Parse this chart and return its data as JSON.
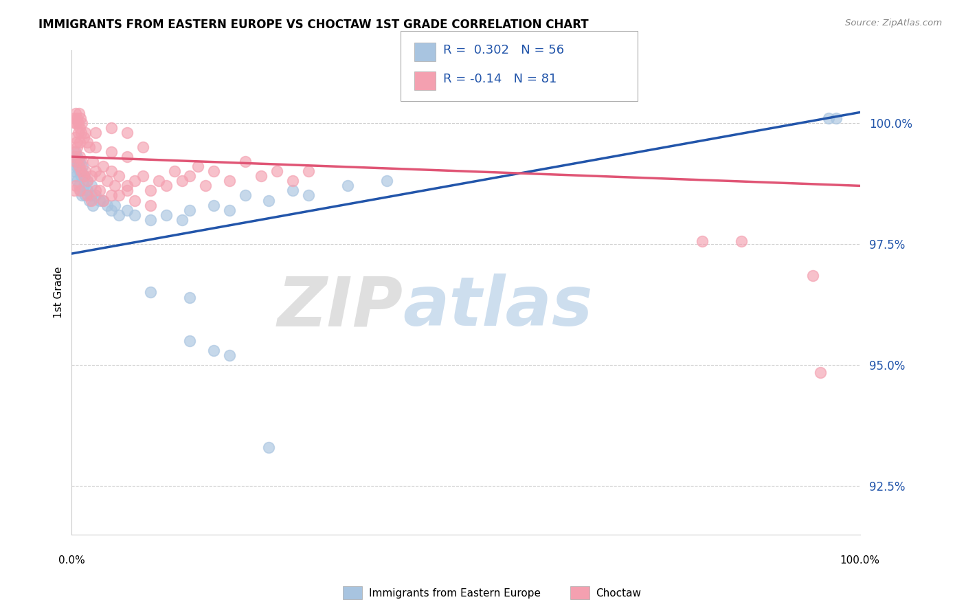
{
  "title": "IMMIGRANTS FROM EASTERN EUROPE VS CHOCTAW 1ST GRADE CORRELATION CHART",
  "source": "Source: ZipAtlas.com",
  "ylabel": "1st Grade",
  "xlim": [
    0.0,
    100.0
  ],
  "ylim": [
    91.5,
    101.5
  ],
  "yticks": [
    92.5,
    95.0,
    97.5,
    100.0
  ],
  "ytick_labels": [
    "92.5%",
    "95.0%",
    "97.5%",
    "100.0%"
  ],
  "blue_R": 0.302,
  "blue_N": 56,
  "pink_R": -0.14,
  "pink_N": 81,
  "blue_color": "#a8c4e0",
  "pink_color": "#f4a0b0",
  "blue_line_color": "#2255aa",
  "pink_line_color": "#e05575",
  "axis_color": "#2255aa",
  "watermark_zip": "ZIP",
  "watermark_atlas": "atlas",
  "blue_line_ends": [
    0,
    96,
    97.3,
    100.1
  ],
  "pink_line_ends": [
    0,
    100,
    99.3,
    98.7
  ],
  "blue_points": [
    [
      0.3,
      99.0
    ],
    [
      0.5,
      98.9
    ],
    [
      0.6,
      99.1
    ],
    [
      0.7,
      98.8
    ],
    [
      0.8,
      99.2
    ],
    [
      0.9,
      98.7
    ],
    [
      1.0,
      99.0
    ],
    [
      1.1,
      98.6
    ],
    [
      1.2,
      98.9
    ],
    [
      1.3,
      98.5
    ],
    [
      1.5,
      98.7
    ],
    [
      1.7,
      98.5
    ],
    [
      2.0,
      98.6
    ],
    [
      2.2,
      98.4
    ],
    [
      2.5,
      98.5
    ],
    [
      2.7,
      98.3
    ],
    [
      3.0,
      98.5
    ],
    [
      3.5,
      98.4
    ],
    [
      4.0,
      98.4
    ],
    [
      4.5,
      98.3
    ],
    [
      5.0,
      98.2
    ],
    [
      5.5,
      98.3
    ],
    [
      6.0,
      98.1
    ],
    [
      7.0,
      98.2
    ],
    [
      8.0,
      98.1
    ],
    [
      10.0,
      98.0
    ],
    [
      12.0,
      98.1
    ],
    [
      14.0,
      98.0
    ],
    [
      15.0,
      98.2
    ],
    [
      18.0,
      98.3
    ],
    [
      20.0,
      98.2
    ],
    [
      22.0,
      98.5
    ],
    [
      25.0,
      98.4
    ],
    [
      28.0,
      98.6
    ],
    [
      30.0,
      98.5
    ],
    [
      35.0,
      98.7
    ],
    [
      40.0,
      98.8
    ],
    [
      0.4,
      99.3
    ],
    [
      0.5,
      99.4
    ],
    [
      0.6,
      99.2
    ],
    [
      0.7,
      99.3
    ],
    [
      0.8,
      99.1
    ],
    [
      1.0,
      99.2
    ],
    [
      1.2,
      99.0
    ],
    [
      1.4,
      99.1
    ],
    [
      1.6,
      98.9
    ],
    [
      2.0,
      98.8
    ],
    [
      2.5,
      98.7
    ],
    [
      10.0,
      96.5
    ],
    [
      15.0,
      96.4
    ],
    [
      15.0,
      95.5
    ],
    [
      18.0,
      95.3
    ],
    [
      20.0,
      95.2
    ],
    [
      25.0,
      93.3
    ],
    [
      96.0,
      100.1
    ],
    [
      97.0,
      100.1
    ]
  ],
  "pink_points": [
    [
      0.3,
      100.1
    ],
    [
      0.4,
      100.0
    ],
    [
      0.5,
      100.2
    ],
    [
      0.6,
      100.0
    ],
    [
      0.7,
      100.1
    ],
    [
      0.8,
      100.0
    ],
    [
      0.9,
      100.2
    ],
    [
      1.0,
      99.9
    ],
    [
      1.1,
      100.1
    ],
    [
      1.2,
      99.8
    ],
    [
      1.3,
      100.0
    ],
    [
      1.5,
      99.7
    ],
    [
      1.7,
      99.8
    ],
    [
      2.0,
      99.6
    ],
    [
      2.2,
      99.5
    ],
    [
      0.2,
      99.3
    ],
    [
      0.3,
      99.4
    ],
    [
      0.5,
      99.2
    ],
    [
      0.7,
      99.5
    ],
    [
      0.9,
      99.1
    ],
    [
      1.0,
      99.3
    ],
    [
      1.2,
      99.0
    ],
    [
      1.3,
      99.2
    ],
    [
      1.5,
      98.9
    ],
    [
      1.7,
      99.0
    ],
    [
      2.0,
      98.8
    ],
    [
      2.5,
      98.9
    ],
    [
      2.7,
      99.2
    ],
    [
      3.0,
      99.0
    ],
    [
      3.5,
      98.9
    ],
    [
      4.0,
      99.1
    ],
    [
      4.5,
      98.8
    ],
    [
      5.0,
      99.0
    ],
    [
      5.5,
      98.7
    ],
    [
      6.0,
      98.9
    ],
    [
      7.0,
      98.7
    ],
    [
      8.0,
      98.8
    ],
    [
      9.0,
      98.9
    ],
    [
      10.0,
      98.6
    ],
    [
      11.0,
      98.8
    ],
    [
      12.0,
      98.7
    ],
    [
      13.0,
      99.0
    ],
    [
      14.0,
      98.8
    ],
    [
      15.0,
      98.9
    ],
    [
      16.0,
      99.1
    ],
    [
      17.0,
      98.7
    ],
    [
      18.0,
      99.0
    ],
    [
      20.0,
      98.8
    ],
    [
      22.0,
      99.2
    ],
    [
      24.0,
      98.9
    ],
    [
      26.0,
      99.0
    ],
    [
      28.0,
      98.8
    ],
    [
      30.0,
      99.0
    ],
    [
      3.0,
      99.5
    ],
    [
      5.0,
      99.4
    ],
    [
      7.0,
      99.3
    ],
    [
      9.0,
      99.5
    ],
    [
      2.5,
      98.4
    ],
    [
      3.5,
      98.6
    ],
    [
      5.0,
      98.5
    ],
    [
      7.0,
      98.6
    ],
    [
      0.4,
      99.7
    ],
    [
      0.6,
      99.6
    ],
    [
      0.8,
      99.8
    ],
    [
      1.0,
      99.6
    ],
    [
      3.0,
      99.8
    ],
    [
      5.0,
      99.9
    ],
    [
      7.0,
      99.8
    ],
    [
      80.0,
      97.55
    ],
    [
      85.0,
      97.55
    ],
    [
      94.0,
      96.85
    ],
    [
      95.0,
      94.85
    ],
    [
      0.3,
      98.6
    ],
    [
      0.5,
      98.7
    ],
    [
      1.0,
      98.6
    ],
    [
      2.0,
      98.5
    ],
    [
      3.0,
      98.6
    ],
    [
      4.0,
      98.4
    ],
    [
      6.0,
      98.5
    ],
    [
      8.0,
      98.4
    ],
    [
      10.0,
      98.3
    ]
  ]
}
